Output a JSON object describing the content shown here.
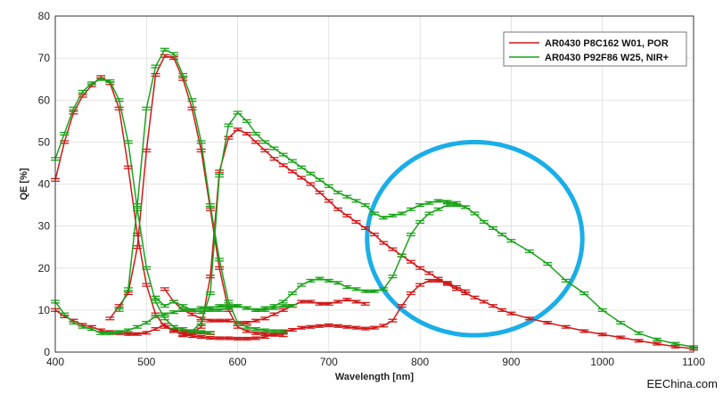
{
  "chart_data": {
    "type": "line",
    "title": "",
    "xlabel": "Wavelength [nm]",
    "ylabel": "QE [%]",
    "xlim": [
      400,
      1100
    ],
    "ylim": [
      0,
      80
    ],
    "x_ticks": [
      "400",
      "500",
      "600",
      "700",
      "800",
      "900",
      "1000",
      "1100"
    ],
    "y_ticks": [
      "0",
      "10",
      "20",
      "30",
      "40",
      "50",
      "60",
      "70",
      "80"
    ],
    "grid": true,
    "legend_position": "top-right",
    "colors": {
      "red": "#d01818",
      "green": "#1aa31a",
      "circle": "#1aaee8"
    },
    "annotation": {
      "type": "circle",
      "color": "#1aaee8",
      "center_x": 860,
      "center_y": 27,
      "rx_nm": 118,
      "ry_qe": 23
    },
    "series": [
      {
        "name": "AR0430  P8C162 W01, POR",
        "color": "#d01818",
        "curves": [
          {
            "x": [
              400,
              410,
              420,
              430,
              440,
              450,
              460,
              470,
              480,
              490,
              500,
              510,
              520,
              530,
              540,
              550,
              560,
              570
            ],
            "y": [
              41,
              50,
              57,
              61,
              63.5,
              65.5,
              64,
              58,
              44,
              28,
              16,
              9,
              6,
              5.2,
              5,
              4.8,
              4.6,
              4.5
            ]
          },
          {
            "x": [
              460,
              470,
              480,
              490,
              500,
              510,
              520,
              530,
              540,
              550,
              560,
              570,
              580,
              590,
              600,
              610,
              620,
              630,
              640,
              650
            ],
            "y": [
              8,
              11,
              14,
              25,
              48,
              66,
              70.5,
              70,
              65,
              58,
              48,
              34,
              20,
              10,
              6,
              5,
              4.5,
              4.3,
              4.1,
              4
            ]
          },
          {
            "x": [
              540,
              550,
              560,
              570,
              580,
              590,
              600,
              610,
              620,
              630,
              640,
              650,
              660,
              670,
              680,
              690,
              700,
              710,
              720,
              730,
              740,
              750,
              760,
              770,
              780,
              790,
              800,
              810,
              820,
              830,
              840,
              850,
              860,
              870,
              880,
              890,
              900,
              920,
              940,
              960,
              980,
              1000,
              1020,
              1040,
              1060,
              1080,
              1100
            ],
            "y": [
              4,
              4.5,
              6,
              18,
              43,
              51,
              53,
              52,
              50,
              48,
              46,
              44.5,
              43,
              41.5,
              40,
              38,
              36,
              34,
              32.5,
              31,
              29.5,
              28,
              26,
              24.5,
              23,
              21.5,
              20,
              18.8,
              17.5,
              16.2,
              15,
              14,
              13,
              12,
              11,
              10,
              9.2,
              8,
              7,
              6,
              5,
              4.2,
              3.5,
              2.7,
              2,
              1.3,
              0.8
            ]
          },
          {
            "x": [
              400,
              410,
              420,
              430,
              440,
              450,
              460,
              470,
              480,
              490,
              500,
              510,
              520,
              530,
              540,
              550,
              560,
              570,
              580,
              590,
              600,
              610,
              620,
              630,
              640,
              650,
              660,
              670,
              680,
              690,
              700,
              710,
              720,
              730,
              740,
              750,
              760,
              770,
              780,
              790,
              800,
              810,
              820,
              830,
              840,
              850
            ],
            "y": [
              10,
              8.5,
              7.5,
              6.5,
              6,
              5.2,
              4.8,
              4.5,
              4.3,
              4.3,
              4.6,
              5.5,
              6.5,
              5,
              4.2,
              3.8,
              3.6,
              3.4,
              3.3,
              3.3,
              3.2,
              3.2,
              3.3,
              3.6,
              4.2,
              4.8,
              5.3,
              5.8,
              6,
              6.2,
              6.4,
              6.2,
              6,
              5.8,
              5.6,
              5.8,
              6.3,
              7.5,
              11,
              14,
              16,
              17,
              17,
              16.5,
              15.5,
              14.5
            ]
          },
          {
            "x": [
              520,
              530,
              540,
              550,
              560,
              570,
              580,
              590,
              600,
              610,
              620,
              630,
              640,
              650,
              660,
              670,
              680,
              690,
              700,
              710,
              720,
              730,
              740
            ],
            "y": [
              15,
              12,
              10,
              9,
              8,
              7.5,
              7.5,
              7.5,
              7,
              7,
              7.5,
              8,
              9,
              10,
              11,
              12,
              12,
              11.5,
              11.5,
              12,
              12.5,
              12,
              11.5
            ]
          }
        ]
      },
      {
        "name": "AR0430  P92F86 W25, NIR+",
        "color": "#1aa31a",
        "curves": [
          {
            "x": [
              400,
              410,
              420,
              430,
              440,
              450,
              460,
              470,
              480,
              490,
              500,
              510,
              520,
              530,
              540,
              550,
              560,
              570
            ],
            "y": [
              46,
              52,
              58,
              62,
              64,
              65,
              64.5,
              60,
              50,
              34,
              20,
              12,
              8,
              6,
              5.5,
              5,
              4.8,
              4.6
            ]
          },
          {
            "x": [
              470,
              480,
              490,
              500,
              510,
              520,
              530,
              540,
              550,
              560,
              570,
              580,
              590,
              600,
              610,
              620,
              630,
              640,
              650
            ],
            "y": [
              10,
              15,
              35,
              58,
              68,
              72,
              71,
              66,
              60,
              50,
              35,
              22,
              12,
              7,
              6,
              5.5,
              5.2,
              5,
              5
            ]
          },
          {
            "x": [
              550,
              560,
              570,
              580,
              590,
              600,
              610,
              620,
              630,
              640,
              650,
              660,
              670,
              680,
              690,
              700,
              710,
              720,
              730,
              740,
              750,
              760,
              770,
              780,
              790,
              800,
              810,
              820,
              830,
              840,
              850,
              860,
              870,
              880,
              890,
              900,
              920,
              940,
              960,
              980,
              1000,
              1020,
              1040,
              1060,
              1080,
              1100
            ],
            "y": [
              5,
              7,
              14,
              42,
              54,
              57,
              55,
              52,
              50,
              48.5,
              47,
              45.5,
              44,
              42.5,
              41,
              39.5,
              38,
              37,
              36,
              35,
              33,
              32,
              32.5,
              33,
              34,
              35,
              35.5,
              36,
              35.8,
              35.5,
              34.5,
              33,
              31,
              29.5,
              28,
              26.5,
              24,
              21,
              17,
              14,
              10,
              7,
              4.5,
              3,
              2,
              1.2
            ]
          },
          {
            "x": [
              400,
              410,
              420,
              430,
              440,
              450,
              460,
              470,
              480,
              490,
              500,
              510,
              520,
              530,
              540,
              550,
              560,
              570,
              580,
              590,
              600,
              610,
              620,
              630,
              640,
              650,
              660,
              670,
              680,
              690,
              700,
              710,
              720,
              730,
              740,
              750,
              760,
              770,
              780,
              790,
              800,
              810,
              820,
              830,
              840,
              850
            ],
            "y": [
              12,
              9,
              7,
              6,
              5.5,
              4.5,
              4.5,
              4.8,
              5.2,
              6,
              7,
              8.5,
              9,
              9.5,
              10,
              10,
              10.5,
              10.5,
              11,
              11,
              11,
              10.5,
              10,
              10.5,
              11,
              12,
              14,
              16,
              17,
              17.5,
              17,
              16.5,
              15.5,
              15,
              14.5,
              14.5,
              15,
              18,
              23,
              28,
              31,
              33,
              34,
              35,
              35,
              34.5
            ]
          },
          {
            "x": [
              510,
              520,
              530,
              540,
              550,
              560,
              570,
              580,
              590,
              600,
              610,
              620,
              630,
              640,
              650,
              660
            ],
            "y": [
              13,
              11,
              12,
              11,
              10,
              9.5,
              10,
              10,
              10.5,
              11,
              10.5,
              10,
              10,
              10.5,
              11,
              11
            ]
          }
        ]
      }
    ]
  },
  "watermark": "EEChina.com"
}
